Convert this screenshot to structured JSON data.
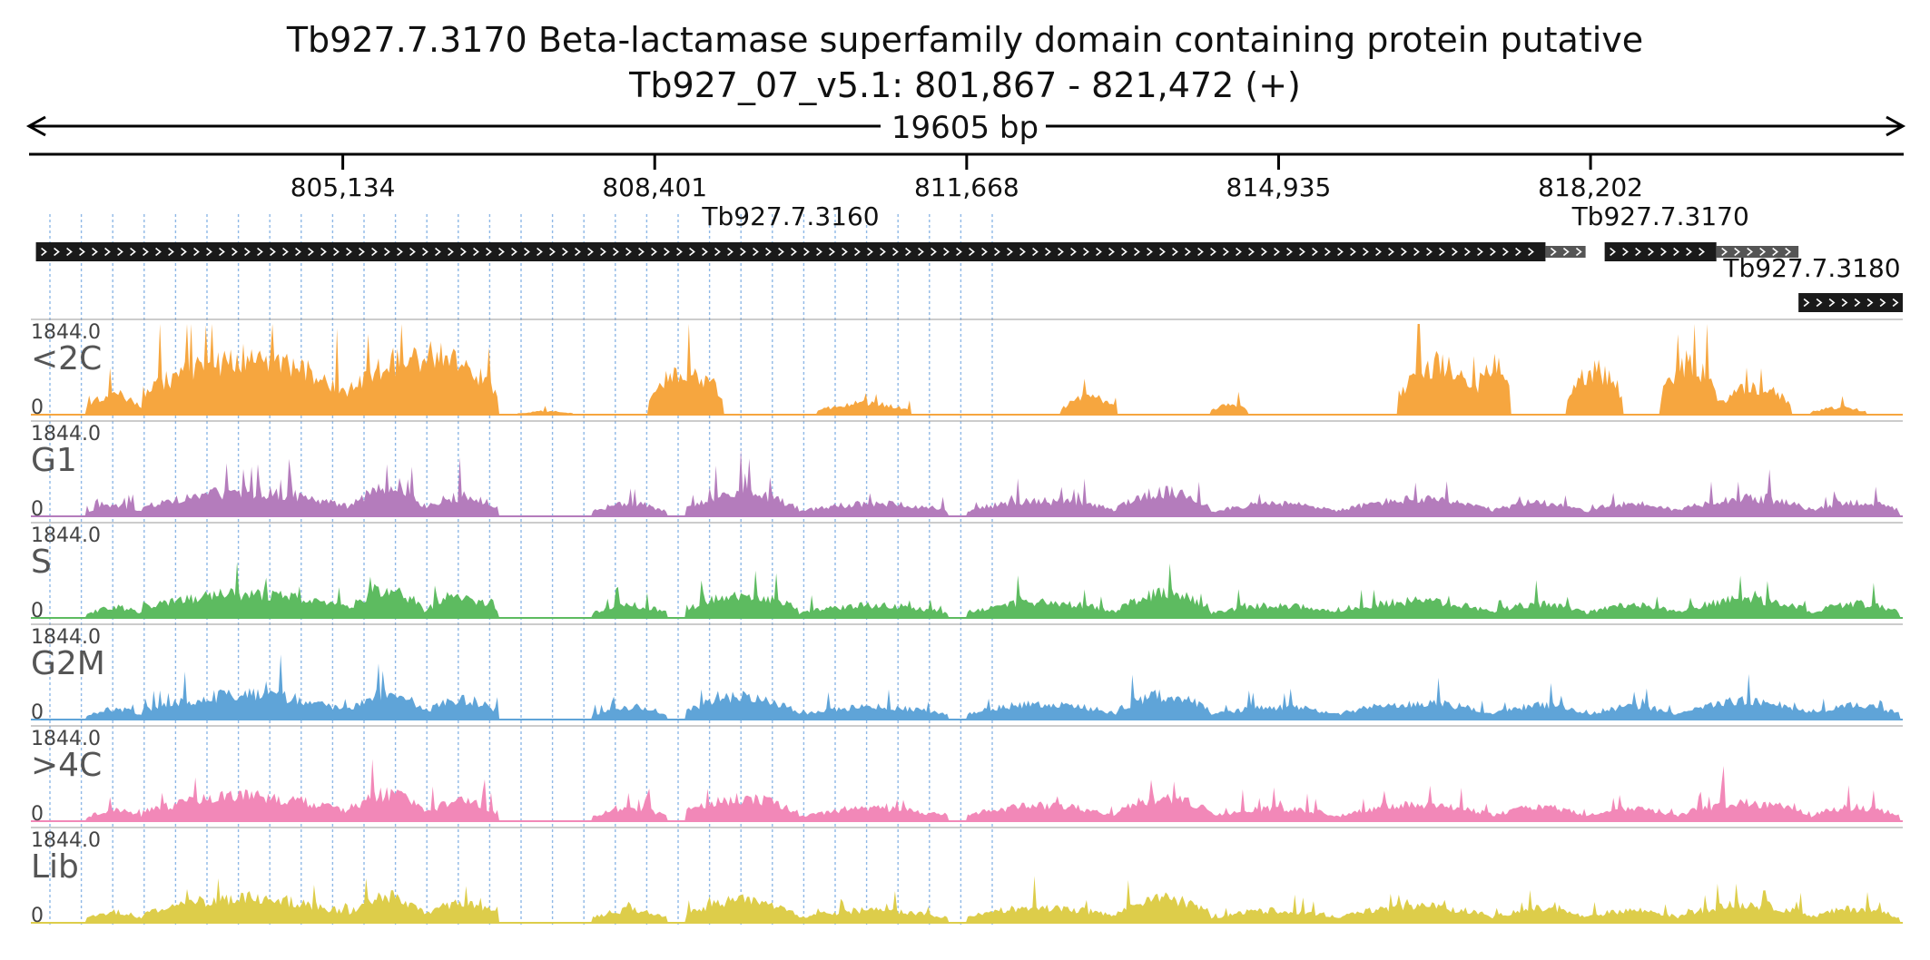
{
  "title": {
    "line1": "Tb927.7.3170  Beta-lactamase superfamily domain containing protein  putative",
    "line2": "Tb927_07_v5.1: 801,867 - 821,472 (+)"
  },
  "scale_label": "19605 bp",
  "chart_data": {
    "type": "area",
    "chromosome": "Tb927_07_v5.1",
    "strand": "+",
    "xlim": [
      801867,
      821472
    ],
    "xticks": [
      805134,
      808401,
      811668,
      814935,
      818202
    ],
    "xtick_labels": [
      "805,134",
      "808,401",
      "811,668",
      "814,935",
      "818,202"
    ],
    "genes": [
      {
        "name": "Tb927.7.3160",
        "start": 801920,
        "end": 817730,
        "utr_end": 818150
      },
      {
        "name": "Tb927.7.3170",
        "start": 818350,
        "end": 819520,
        "utr_end": 820380
      },
      {
        "name": "Tb927.7.3180",
        "start": 820380,
        "end": 821672
      }
    ],
    "tracks": [
      {
        "name": "<2C",
        "color": "#F6A63F",
        "ymax_label": "1844.0",
        "ymin_label": "0",
        "ylim": [
          0,
          1844
        ],
        "profile": "sparse"
      },
      {
        "name": "G1",
        "color": "#B47CBC",
        "ymax_label": "1844.0",
        "ymin_label": "0",
        "ylim": [
          0,
          1844
        ],
        "profile": "dense"
      },
      {
        "name": "S",
        "color": "#5DBB60",
        "ymax_label": "1844.0",
        "ymin_label": "0",
        "ylim": [
          0,
          1844
        ],
        "profile": "dense"
      },
      {
        "name": "G2M",
        "color": "#5FA4D8",
        "ymax_label": "1844.0",
        "ymin_label": "0",
        "ylim": [
          0,
          1844
        ],
        "profile": "dense"
      },
      {
        "name": ">4C",
        "color": "#F288B8",
        "ymax_label": "1844.0",
        "ymin_label": "0",
        "ylim": [
          0,
          1844
        ],
        "profile": "dense"
      },
      {
        "name": "Lib",
        "color": "#DDCD4A",
        "ymax_label": "1844.0",
        "ymin_label": "0",
        "ylim": [
          0,
          1844
        ],
        "profile": "dense"
      }
    ],
    "grid": true
  }
}
